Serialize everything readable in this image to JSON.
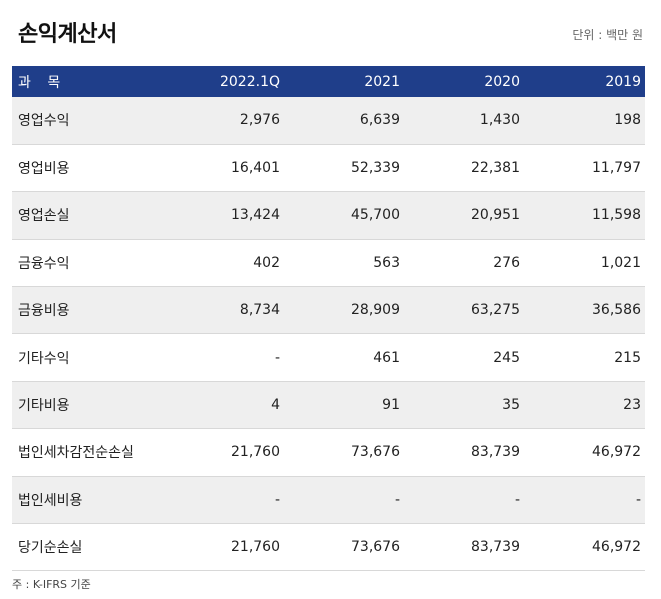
{
  "title": "손익계산서",
  "unit": "단위 : 백만 원",
  "table": {
    "headers": [
      "과 목",
      "2022.1Q",
      "2021",
      "2020",
      "2019"
    ],
    "rows": [
      [
        "영업수익",
        "2,976",
        "6,639",
        "1,430",
        "198"
      ],
      [
        "영업비용",
        "16,401",
        "52,339",
        "22,381",
        "11,797"
      ],
      [
        "영업손실",
        "13,424",
        "45,700",
        "20,951",
        "11,598"
      ],
      [
        "금융수익",
        "402",
        "563",
        "276",
        "1,021"
      ],
      [
        "금융비용",
        "8,734",
        "28,909",
        "63,275",
        "36,586"
      ],
      [
        "기타수익",
        "-",
        "461",
        "245",
        "215"
      ],
      [
        "기타비용",
        "4",
        "91",
        "35",
        "23"
      ],
      [
        "법인세차감전순손실",
        "21,760",
        "73,676",
        "83,739",
        "46,972"
      ],
      [
        "법인세비용",
        "-",
        "-",
        "-",
        "-"
      ],
      [
        "당기순손실",
        "21,760",
        "73,676",
        "83,739",
        "46,972"
      ]
    ]
  },
  "note": "주 : K-IFRS 기준",
  "colors": {
    "header_bg": "#1f3e8a",
    "stripe": "#efefef"
  }
}
